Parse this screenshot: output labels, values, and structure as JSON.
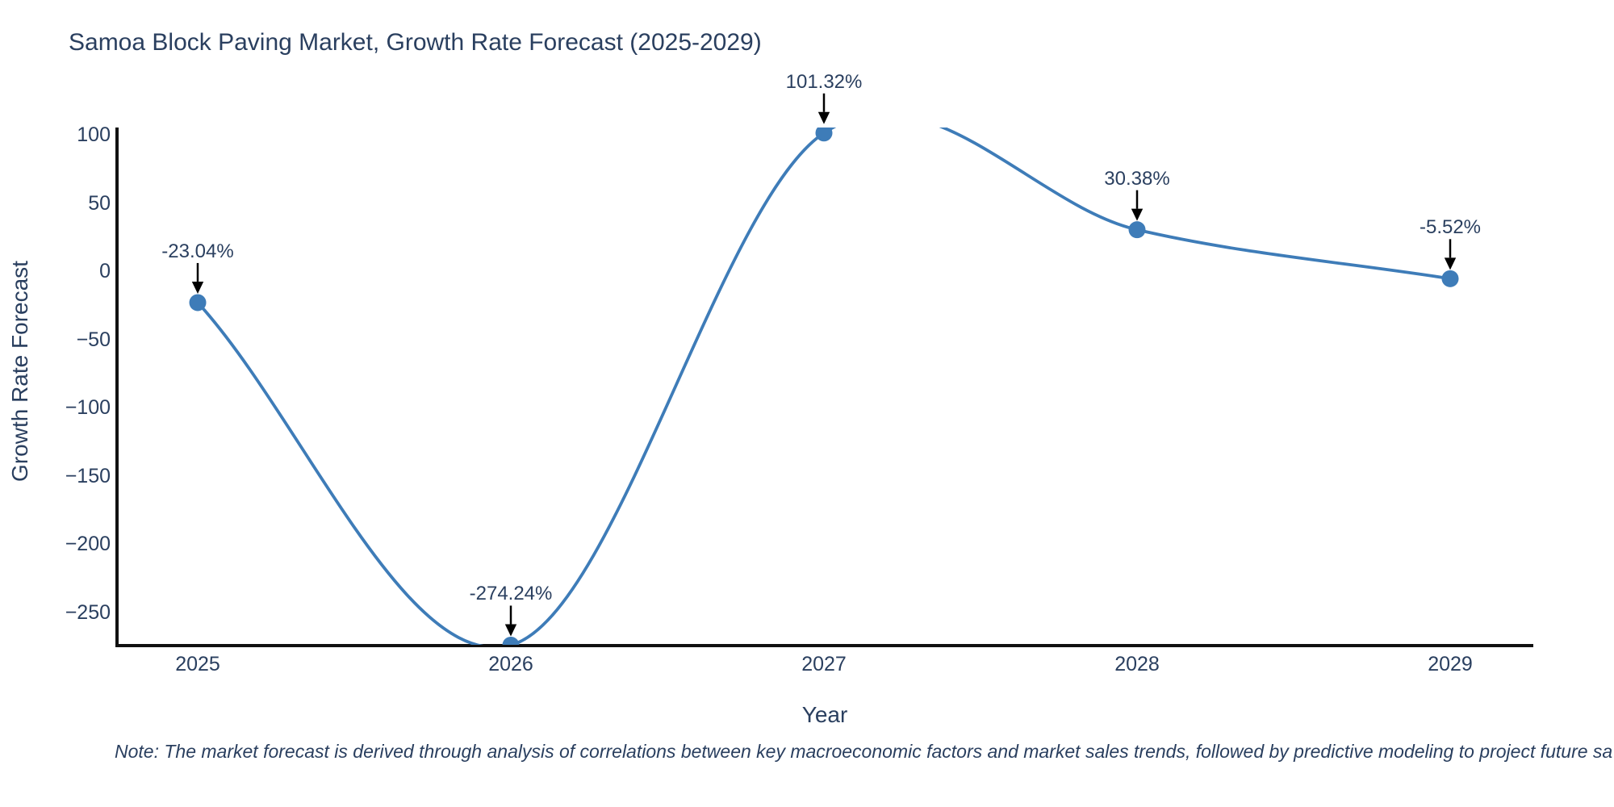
{
  "title": "Samoa Block Paving Market, Growth Rate Forecast (2025-2029)",
  "chart_data": {
    "type": "line",
    "line_shape": "spline",
    "title": "Samoa Block Paving Market, Growth Rate Forecast (2025-2029)",
    "xlabel": "Year",
    "ylabel": "Growth Rate Forecast",
    "x": [
      2025,
      2026,
      2027,
      2028,
      2029
    ],
    "y": [
      -23.04,
      -274.24,
      101.32,
      30.38,
      -5.52
    ],
    "point_labels": [
      "-23.04%",
      "-274.24%",
      "101.32%",
      "30.38%",
      "-5.52%"
    ],
    "x_tick_labels": [
      "2025",
      "2026",
      "2027",
      "2028",
      "2029"
    ],
    "y_tick_labels": [
      "100",
      "50",
      "0",
      "−50",
      "−100",
      "−150",
      "−200",
      "−250"
    ],
    "y_tick_values": [
      100,
      50,
      0,
      -50,
      -100,
      -150,
      -200,
      -250
    ],
    "ylim": [
      -274.5,
      105.3
    ],
    "grid": false,
    "legend_position": "none",
    "line_color": "#3e7cb8",
    "marker_color": "#3e7cb8",
    "axis_line_color": "#111111",
    "text_color": "#2a3f5f",
    "arrow_color": "#000000"
  },
  "note": "Note: The market forecast is derived through analysis of correlations between key macroeconomic factors and market sales trends, followed by predictive modeling to project future sa"
}
